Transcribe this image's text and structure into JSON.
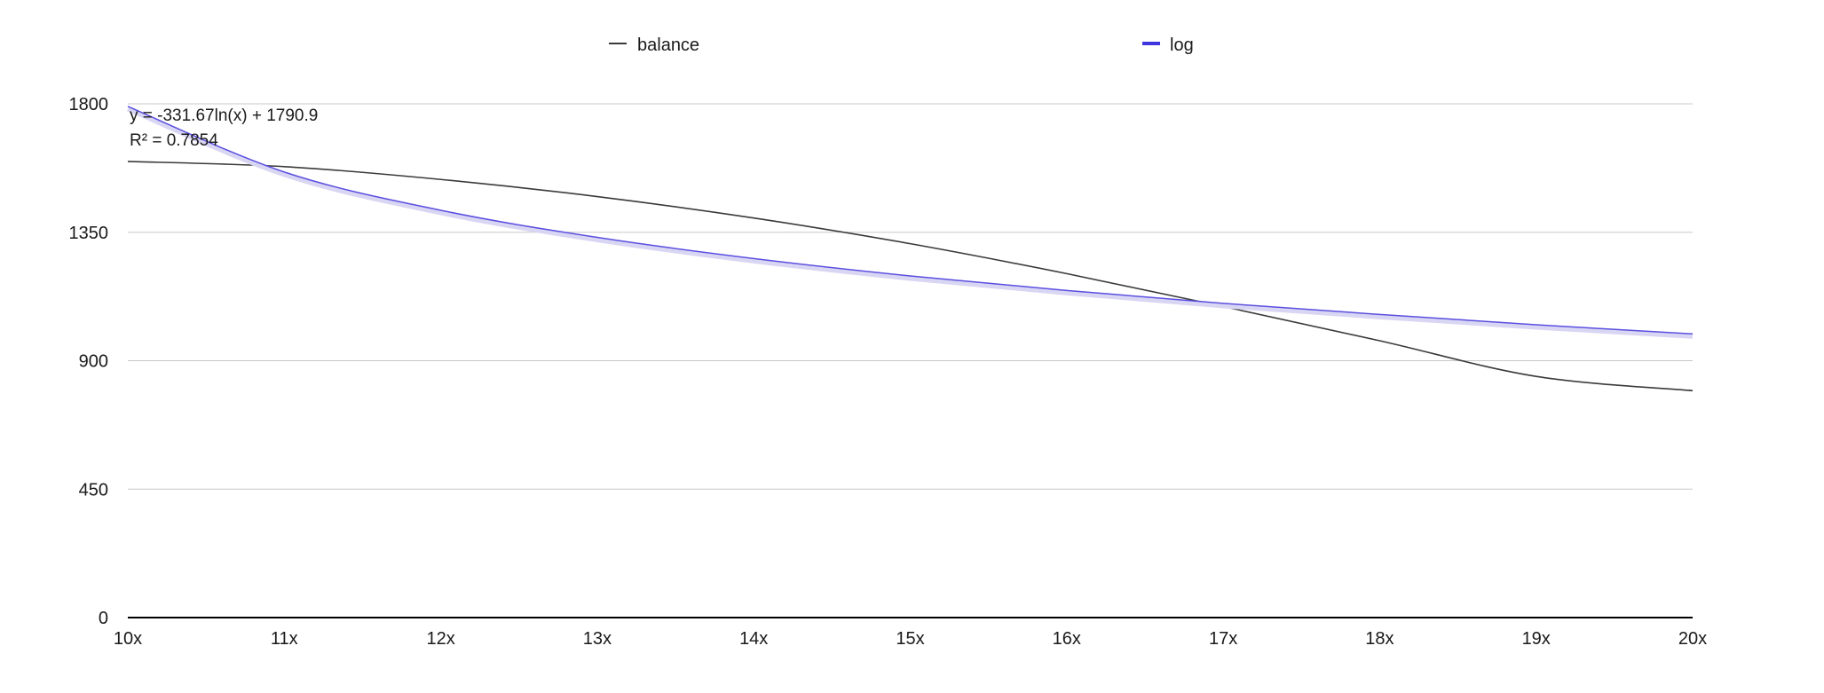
{
  "chart_data": {
    "type": "line",
    "title": "",
    "xlabel": "",
    "ylabel": "",
    "x": [
      "10x",
      "11x",
      "12x",
      "13x",
      "14x",
      "15x",
      "16x",
      "17x",
      "18x",
      "19x",
      "20x"
    ],
    "ylim": [
      0,
      1800
    ],
    "yticks": [
      "0",
      "450",
      "900",
      "1350",
      "1800"
    ],
    "grid": true,
    "legend_position": "top",
    "series": [
      {
        "name": "balance",
        "color": "#3a3a3a",
        "values": [
          1598,
          1580,
          1535,
          1475,
          1400,
          1310,
          1205,
          1090,
          970,
          845,
          795
        ]
      },
      {
        "name": "log",
        "color": "#5a4fe0",
        "values": [
          1790.9,
          1561,
          1427,
          1332,
          1258,
          1197,
          1146,
          1101,
          1062,
          1026,
          994
        ]
      }
    ],
    "annotations": [
      {
        "label": "trendline-equation",
        "text": "y = -331.67ln(x) + 1790.9"
      },
      {
        "label": "trendline-r-squared",
        "text": "R² = 0.7854"
      }
    ]
  }
}
